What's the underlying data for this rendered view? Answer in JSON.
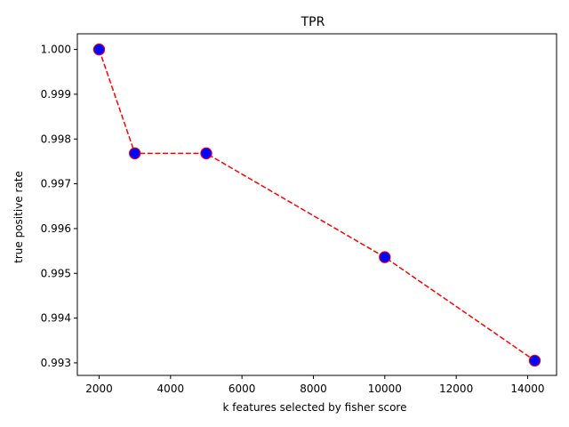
{
  "chart_data": {
    "type": "line",
    "title": "TPR",
    "xlabel": "k features selected by fisher score",
    "ylabel": "true positive rate",
    "x": [
      2000,
      3000,
      5000,
      10000,
      14200
    ],
    "series": [
      {
        "values": [
          1.0,
          0.99768,
          0.99768,
          0.99536,
          0.99305
        ],
        "line_color": "#ff0000",
        "line_style": "dashed",
        "marker_face": "#0000ff",
        "marker_edge": "#ff0000"
      }
    ],
    "xlim": [
      1390,
      14810
    ],
    "ylim": [
      0.99272,
      1.00035
    ],
    "xticks": [
      2000,
      4000,
      6000,
      8000,
      10000,
      12000,
      14000
    ],
    "yticks": [
      0.993,
      0.994,
      0.995,
      0.996,
      0.997,
      0.998,
      0.999,
      1.0
    ],
    "xtick_labels": [
      "2000",
      "4000",
      "6000",
      "8000",
      "10000",
      "12000",
      "14000"
    ],
    "ytick_labels": [
      "0.993",
      "0.994",
      "0.995",
      "0.996",
      "0.997",
      "0.998",
      "0.999",
      "1.000"
    ],
    "grid": false,
    "legend": "none"
  }
}
